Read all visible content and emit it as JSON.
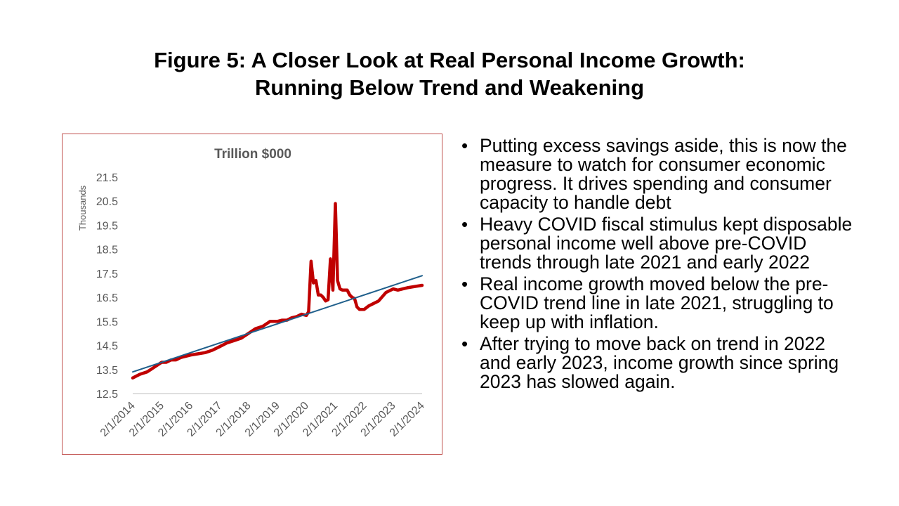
{
  "slide": {
    "title_line1": "Figure 5: A Closer Look at Real Personal Income Growth:",
    "title_line2": "Running Below Trend and Weakening"
  },
  "bullets": [
    "Putting excess savings aside, this is now the measure to watch for consumer economic progress.  It drives spending and consumer capacity to handle debt",
    "Heavy COVID fiscal stimulus kept disposable personal income well above pre-COVID trends through late 2021 and early 2022",
    "Real income growth moved below the pre-COVID trend line in late 2021, struggling to keep up with inflation.",
    "After trying to move back on trend in 2022 and early 2023, income growth since spring 2023 has slowed again."
  ],
  "chart_data": {
    "type": "line",
    "title": "Trillion $000",
    "xlabel": "",
    "ylabel": "Thousands",
    "ylim": [
      12.5,
      21.5
    ],
    "yticks": [
      "21.5",
      "20.5",
      "19.5",
      "18.5",
      "17.5",
      "16.5",
      "15.5",
      "14.5",
      "13.5",
      "12.5"
    ],
    "xticks": [
      "2/1/2014",
      "2/1/2015",
      "2/1/2016",
      "2/1/2017",
      "2/1/2018",
      "2/1/2019",
      "2/1/2020",
      "2/1/2021",
      "2/1/2022",
      "2/1/2023",
      "2/1/2024"
    ],
    "grid": false,
    "colors": {
      "income": "#c00000",
      "trend": "#1f5f8b",
      "axis": "#bfbfbf",
      "text": "#595959"
    },
    "series": [
      {
        "name": "",
        "style": "thick",
        "x": [
          "2/1/2014",
          "5/1/2014",
          "8/1/2014",
          "11/1/2014",
          "2/1/2015",
          "4/1/2015",
          "6/1/2015",
          "8/1/2015",
          "10/1/2015",
          "2/1/2016",
          "5/1/2016",
          "8/1/2016",
          "11/1/2016",
          "2/1/2017",
          "5/1/2017",
          "8/1/2017",
          "11/1/2017",
          "2/1/2018",
          "5/1/2018",
          "8/1/2018",
          "11/1/2018",
          "2/1/2019",
          "4/1/2019",
          "6/1/2019",
          "8/1/2019",
          "10/1/2019",
          "12/1/2019",
          "2/1/2020",
          "3/1/2020",
          "4/1/2020",
          "5/1/2020",
          "6/1/2020",
          "7/1/2020",
          "8/1/2020",
          "9/1/2020",
          "10/1/2020",
          "11/1/2020",
          "12/1/2020",
          "1/1/2021",
          "2/1/2021",
          "3/1/2021",
          "4/1/2021",
          "5/1/2021",
          "6/1/2021",
          "7/1/2021",
          "8/1/2021",
          "9/1/2021",
          "10/1/2021",
          "11/1/2021",
          "12/1/2021",
          "2/1/2022",
          "4/1/2022",
          "6/1/2022",
          "8/1/2022",
          "11/1/2022",
          "2/1/2023",
          "4/1/2023",
          "6/1/2023",
          "8/1/2023",
          "11/1/2023",
          "2/1/2024"
        ],
        "values": [
          13.15,
          13.3,
          13.4,
          13.6,
          13.8,
          13.8,
          13.9,
          13.9,
          14.0,
          14.1,
          14.15,
          14.2,
          14.3,
          14.45,
          14.6,
          14.7,
          14.8,
          15.0,
          15.2,
          15.3,
          15.5,
          15.5,
          15.55,
          15.55,
          15.65,
          15.7,
          15.8,
          15.75,
          15.9,
          18.0,
          17.1,
          17.2,
          16.6,
          16.6,
          16.5,
          16.35,
          16.4,
          18.1,
          16.8,
          20.4,
          17.2,
          16.85,
          16.8,
          16.8,
          16.8,
          16.6,
          16.5,
          16.45,
          16.1,
          16.0,
          16.0,
          16.15,
          16.25,
          16.35,
          16.7,
          16.85,
          16.8,
          16.85,
          16.9,
          16.95,
          17.0
        ]
      },
      {
        "name": "",
        "style": "trend",
        "x": [
          "2/1/2014",
          "2/1/2024"
        ],
        "values": [
          13.4,
          17.4
        ]
      }
    ]
  }
}
